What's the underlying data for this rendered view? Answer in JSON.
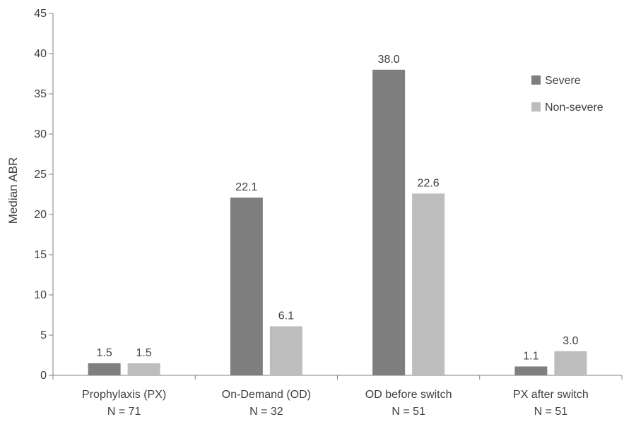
{
  "chart_data": {
    "type": "bar",
    "title": "",
    "xlabel": "",
    "ylabel": "Median ABR",
    "ylim": [
      0,
      45
    ],
    "yticks": [
      0,
      5,
      10,
      15,
      20,
      25,
      30,
      35,
      40,
      45
    ],
    "grid": false,
    "legend_position": "top-right",
    "categories": [
      {
        "label": "Prophylaxis (PX)",
        "n_label": "N = 71"
      },
      {
        "label": "On-Demand (OD)",
        "n_label": "N = 32"
      },
      {
        "label": "OD  before switch",
        "n_label": "N = 51"
      },
      {
        "label": "PX after switch",
        "n_label": "N = 51"
      }
    ],
    "series": [
      {
        "name": "Severe",
        "color": "#7f7f80",
        "values": [
          1.5,
          22.1,
          38.0,
          1.1
        ],
        "labels": [
          "1.5",
          "22.1",
          "38.0",
          "1.1"
        ]
      },
      {
        "name": "Non-severe",
        "color": "#bdbdbe",
        "values": [
          1.5,
          6.1,
          22.6,
          3.0
        ],
        "labels": [
          "1.5",
          "6.1",
          "22.6",
          "3.0"
        ]
      }
    ]
  }
}
